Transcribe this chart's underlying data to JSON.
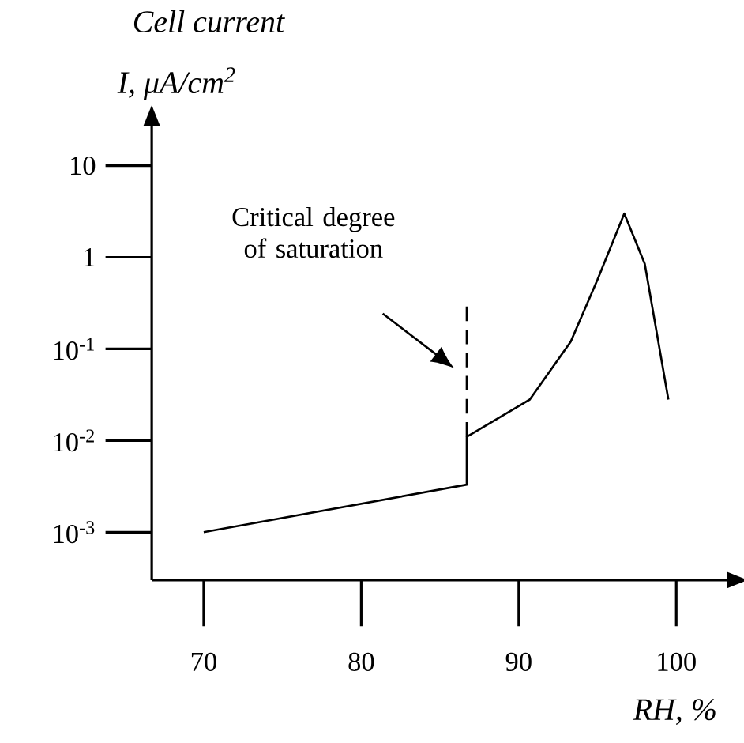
{
  "chart_data": {
    "type": "line",
    "title": "Cell current",
    "ylabel": "I, μA/cm$^{2}$",
    "xlabel": "RH, %",
    "x": [
      70,
      86.7,
      86.7,
      90.7,
      93.3,
      95,
      96.7,
      98,
      99.5
    ],
    "values": [
      0.001,
      0.0033,
      0.011,
      0.028,
      0.12,
      0.57,
      3.0,
      0.85,
      0.028
    ],
    "color": "#000000",
    "log": "y",
    "marker": "none",
    "xlim": [
      66.7,
      103.2
    ],
    "ylim": [
      0.0003,
      27
    ],
    "xticks": [
      70,
      80,
      90,
      100
    ],
    "yticks": [
      {
        "value": 0.001,
        "label": "10$^{-3}$"
      },
      {
        "value": 0.01,
        "label": "10$^{-2}$"
      },
      {
        "value": 0.1,
        "label": "10$^{-1}$"
      },
      {
        "value": 1,
        "label": "1"
      },
      {
        "value": 10,
        "label": "10"
      }
    ],
    "ref_lines": [
      {
        "axis": "x",
        "value": 86.7,
        "label": "Critical degree of saturation",
        "line_style": "dashed",
        "color": "#000000"
      }
    ],
    "grid": false
  }
}
